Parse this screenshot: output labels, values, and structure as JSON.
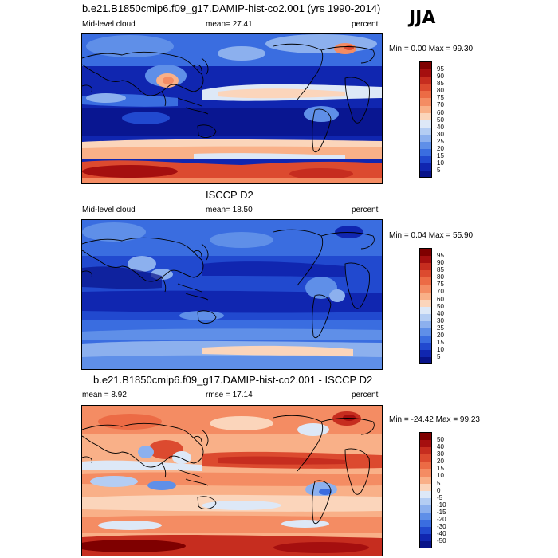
{
  "season": "JJA",
  "panels": [
    {
      "title": "b.e21.B1850cmip6.f09_g17.DAMIP-hist-co2.001 (yrs 1990-2014)",
      "left_label": "Mid-level cloud",
      "center_label": "mean=  27.41",
      "right_label": "percent",
      "minmax": "Min =   0.00 Max =  99.30",
      "colorbar": {
        "labels": [
          "95",
          "90",
          "85",
          "80",
          "75",
          "70",
          "60",
          "50",
          "40",
          "30",
          "25",
          "20",
          "15",
          "10",
          "5"
        ],
        "colors": [
          "#7f0000",
          "#a50f0f",
          "#c62d1f",
          "#dc4a2f",
          "#ec6b45",
          "#f48c63",
          "#f9b088",
          "#fbd5bb",
          "#dde8f7",
          "#b4cdf3",
          "#8cb0ee",
          "#5f8fe8",
          "#3a6de0",
          "#2149cf",
          "#1026b0",
          "#081389"
        ]
      }
    },
    {
      "title": "ISCCP D2",
      "left_label": "Mid-level cloud",
      "center_label": "mean=  18.50",
      "right_label": "percent",
      "minmax": "Min =   0.04 Max =  55.90",
      "colorbar": {
        "labels": [
          "95",
          "90",
          "85",
          "80",
          "75",
          "70",
          "60",
          "50",
          "40",
          "30",
          "25",
          "20",
          "15",
          "10",
          "5"
        ],
        "colors": [
          "#7f0000",
          "#a50f0f",
          "#c62d1f",
          "#dc4a2f",
          "#ec6b45",
          "#f48c63",
          "#f9b088",
          "#fbd5bb",
          "#dde8f7",
          "#b4cdf3",
          "#8cb0ee",
          "#5f8fe8",
          "#3a6de0",
          "#2149cf",
          "#1026b0",
          "#081389"
        ]
      }
    },
    {
      "title": "b.e21.B1850cmip6.f09_g17.DAMIP-hist-co2.001 - ISCCP D2",
      "left_label": "mean =   8.92",
      "center_label": "rmse =  17.14",
      "right_label": "percent",
      "minmax": "Min = -24.42 Max =  99.23",
      "colorbar": {
        "labels": [
          "50",
          "40",
          "30",
          "20",
          "15",
          "10",
          "5",
          "0",
          "-5",
          "-10",
          "-15",
          "-20",
          "-30",
          "-40",
          "-50"
        ],
        "colors": [
          "#7f0000",
          "#a50f0f",
          "#c62d1f",
          "#dc4a2f",
          "#ec6b45",
          "#f48c63",
          "#f9b088",
          "#fbd5bb",
          "#dde8f7",
          "#b4cdf3",
          "#8cb0ee",
          "#5f8fe8",
          "#3a6de0",
          "#2149cf",
          "#1026b0",
          "#081389"
        ]
      }
    }
  ]
}
